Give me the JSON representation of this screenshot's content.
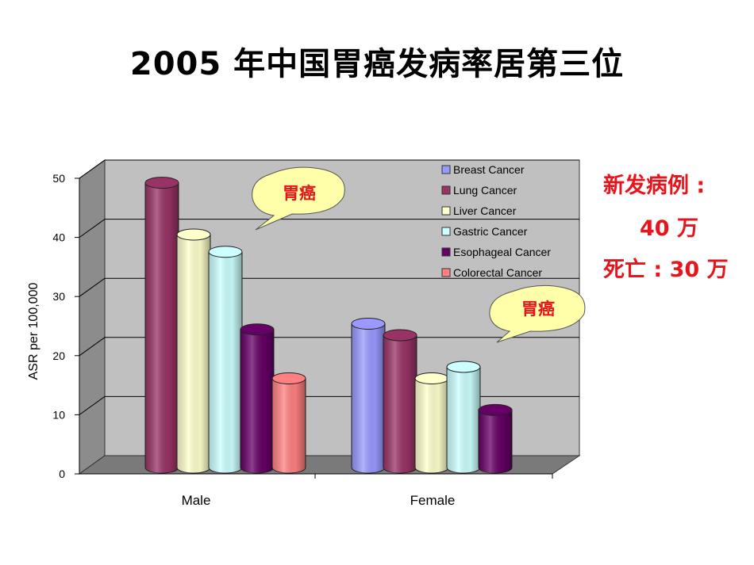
{
  "title": "2005 年中国胃癌发病率居第三位",
  "callout_label": "胃癌",
  "stats": {
    "new_cases": "新发病例 :",
    "new_cases_value": "40 万",
    "deaths": "死亡 :  30 万"
  },
  "chart_data": {
    "type": "bar",
    "categories": [
      "Male",
      "Female"
    ],
    "ylabel": "ASR per 100,000",
    "xlabel": "",
    "ylim": [
      0,
      50
    ],
    "yticks": [
      0,
      10,
      20,
      30,
      40,
      50
    ],
    "legend_position": "top-right",
    "grid": true,
    "series": [
      {
        "name": "Breast Cancer",
        "color": "#9999ff",
        "values": [
          null,
          25
        ]
      },
      {
        "name": "Lung Cancer",
        "color": "#993366",
        "values": [
          49.5,
          23
        ]
      },
      {
        "name": "Liver Cancer",
        "color": "#ffffcc",
        "values": [
          40.5,
          15.5
        ]
      },
      {
        "name": "Gastric Cancer",
        "color": "#ccffff",
        "values": [
          37.5,
          17.5
        ]
      },
      {
        "name": "Esophageal Cancer",
        "color": "#660066",
        "values": [
          24,
          10
        ]
      },
      {
        "name": "Colorectal Cancer",
        "color": "#ff8080",
        "values": [
          15.5,
          null
        ]
      }
    ]
  }
}
